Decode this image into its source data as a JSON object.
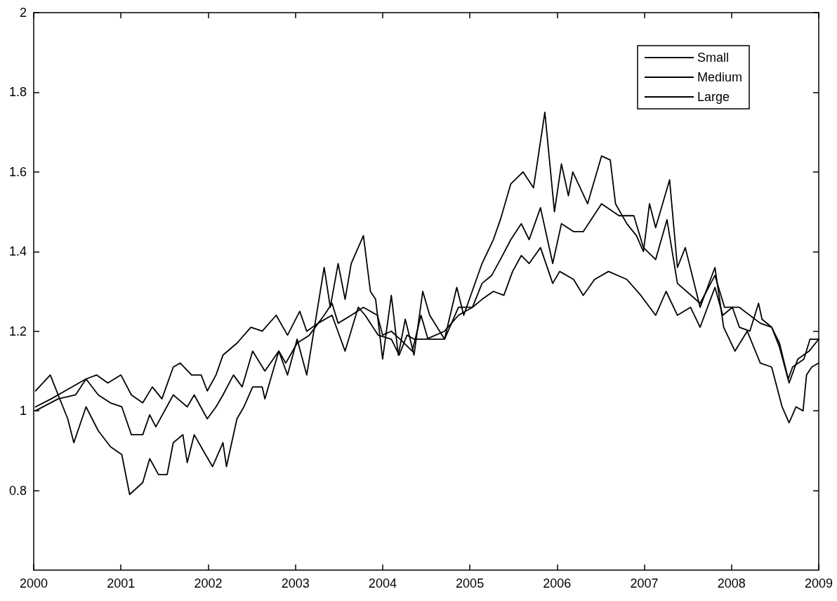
{
  "chart_data": {
    "type": "line",
    "xlim": [
      2000,
      2009
    ],
    "xticks": [
      2000,
      2001,
      2002,
      2003,
      2004,
      2005,
      2006,
      2007,
      2008,
      2009
    ],
    "ylim": [
      0.6,
      2
    ],
    "yticks": [
      0.8,
      1,
      1.2,
      1.4,
      1.6,
      1.8,
      2
    ],
    "grid": false,
    "legend": "top right",
    "line_style": "solid",
    "series": [
      {
        "name": "Small",
        "color": "#000000",
        "x": [
          2000.02,
          2000.19,
          2000.39,
          2000.46,
          2000.6,
          2000.74,
          2000.88,
          2001.01,
          2001.1,
          2001.25,
          2001.33,
          2001.43,
          2001.53,
          2001.6,
          2001.71,
          2001.76,
          2001.84,
          2001.97,
          2002.05,
          2002.17,
          2002.21,
          2002.33,
          2002.41,
          2002.51,
          2002.62,
          2002.65,
          2002.73,
          2002.81,
          2002.91,
          2003.02,
          2003.13,
          2003.33,
          2003.4,
          2003.49,
          2003.57,
          2003.64,
          2003.78,
          2003.86,
          2003.92,
          2004.0,
          2004.1,
          2004.18,
          2004.26,
          2004.36,
          2004.46,
          2004.54,
          2004.71,
          2004.85,
          2004.93,
          2005.14,
          2005.27,
          2005.35,
          2005.47,
          2005.61,
          2005.73,
          2005.86,
          2005.97,
          2006.05,
          2006.13,
          2006.18,
          2006.35,
          2006.51,
          2006.61,
          2006.67,
          2006.8,
          2006.91,
          2006.99,
          2007.06,
          2007.13,
          2007.29,
          2007.38,
          2007.47,
          2007.64,
          2007.81,
          2007.91,
          2008.04,
          2008.18,
          2008.33,
          2008.46,
          2008.58,
          2008.66,
          2008.74,
          2008.82,
          2008.86,
          2008.92,
          2009.0
        ],
        "values": [
          1.05,
          1.09,
          0.98,
          0.92,
          1.01,
          0.95,
          0.91,
          0.89,
          0.79,
          0.82,
          0.88,
          0.84,
          0.84,
          0.92,
          0.94,
          0.87,
          0.94,
          0.89,
          0.86,
          0.92,
          0.86,
          0.98,
          1.01,
          1.06,
          1.06,
          1.03,
          1.09,
          1.15,
          1.09,
          1.18,
          1.09,
          1.36,
          1.26,
          1.37,
          1.28,
          1.37,
          1.44,
          1.3,
          1.28,
          1.13,
          1.29,
          1.14,
          1.23,
          1.14,
          1.3,
          1.24,
          1.18,
          1.31,
          1.24,
          1.37,
          1.43,
          1.48,
          1.57,
          1.6,
          1.56,
          1.75,
          1.5,
          1.62,
          1.54,
          1.6,
          1.52,
          1.64,
          1.63,
          1.52,
          1.47,
          1.44,
          1.4,
          1.52,
          1.46,
          1.58,
          1.36,
          1.41,
          1.26,
          1.36,
          1.21,
          1.15,
          1.2,
          1.12,
          1.11,
          1.01,
          0.97,
          1.01,
          1.0,
          1.09,
          1.11,
          1.12
        ]
      },
      {
        "name": "Medium",
        "color": "#000000",
        "x": [
          2000.02,
          2000.28,
          2000.48,
          2000.6,
          2000.74,
          2000.88,
          2001.01,
          2001.12,
          2001.25,
          2001.33,
          2001.4,
          2001.6,
          2001.76,
          2001.84,
          2001.99,
          2002.09,
          2002.17,
          2002.29,
          2002.39,
          2002.51,
          2002.65,
          2002.81,
          2002.89,
          2003.02,
          2003.16,
          2003.33,
          2003.42,
          2003.49,
          2003.64,
          2003.78,
          2003.94,
          2004.0,
          2004.1,
          2004.2,
          2004.34,
          2004.44,
          2004.52,
          2004.71,
          2004.87,
          2005.03,
          2005.14,
          2005.25,
          2005.35,
          2005.47,
          2005.59,
          2005.68,
          2005.81,
          2005.95,
          2006.05,
          2006.19,
          2006.3,
          2006.51,
          2006.71,
          2006.88,
          2006.99,
          2007.13,
          2007.26,
          2007.38,
          2007.64,
          2007.81,
          2007.92,
          2008.09,
          2008.33,
          2008.46,
          2008.55,
          2008.66,
          2008.76,
          2008.89,
          2009.0
        ],
        "values": [
          1.0,
          1.03,
          1.04,
          1.08,
          1.04,
          1.02,
          1.01,
          0.94,
          0.94,
          0.99,
          0.96,
          1.04,
          1.01,
          1.04,
          0.98,
          1.01,
          1.04,
          1.09,
          1.06,
          1.15,
          1.1,
          1.15,
          1.12,
          1.17,
          1.19,
          1.24,
          1.27,
          1.22,
          1.24,
          1.26,
          1.24,
          1.19,
          1.2,
          1.18,
          1.15,
          1.24,
          1.18,
          1.18,
          1.26,
          1.26,
          1.32,
          1.34,
          1.38,
          1.43,
          1.47,
          1.43,
          1.51,
          1.37,
          1.47,
          1.45,
          1.45,
          1.52,
          1.49,
          1.49,
          1.41,
          1.38,
          1.48,
          1.32,
          1.27,
          1.34,
          1.26,
          1.26,
          1.22,
          1.21,
          1.16,
          1.07,
          1.13,
          1.15,
          1.18
        ]
      },
      {
        "name": "Large",
        "color": "#000000",
        "x": [
          2000.02,
          2000.2,
          2000.36,
          2000.6,
          2000.72,
          2000.85,
          2001.0,
          2001.12,
          2001.25,
          2001.36,
          2001.47,
          2001.6,
          2001.68,
          2001.81,
          2001.92,
          2001.99,
          2002.09,
          2002.17,
          2002.33,
          2002.49,
          2002.62,
          2002.78,
          2002.91,
          2003.05,
          2003.13,
          2003.26,
          2003.42,
          2003.57,
          2003.72,
          2003.8,
          2003.95,
          2004.1,
          2004.19,
          2004.28,
          2004.36,
          2004.5,
          2004.71,
          2004.87,
          2005.03,
          2005.14,
          2005.27,
          2005.39,
          2005.49,
          2005.59,
          2005.68,
          2005.81,
          2005.95,
          2006.03,
          2006.19,
          2006.3,
          2006.43,
          2006.59,
          2006.8,
          2006.96,
          2007.13,
          2007.25,
          2007.38,
          2007.53,
          2007.64,
          2007.81,
          2007.9,
          2008.01,
          2008.09,
          2008.21,
          2008.31,
          2008.35,
          2008.46,
          2008.55,
          2008.65,
          2008.7,
          2008.83,
          2008.9,
          2009.0
        ],
        "values": [
          1.01,
          1.03,
          1.05,
          1.08,
          1.09,
          1.07,
          1.09,
          1.04,
          1.02,
          1.06,
          1.03,
          1.11,
          1.12,
          1.09,
          1.09,
          1.05,
          1.09,
          1.14,
          1.17,
          1.21,
          1.2,
          1.24,
          1.19,
          1.25,
          1.2,
          1.22,
          1.24,
          1.15,
          1.26,
          1.24,
          1.19,
          1.18,
          1.14,
          1.19,
          1.18,
          1.18,
          1.2,
          1.24,
          1.26,
          1.28,
          1.3,
          1.29,
          1.35,
          1.39,
          1.37,
          1.41,
          1.32,
          1.35,
          1.33,
          1.29,
          1.33,
          1.35,
          1.33,
          1.29,
          1.24,
          1.3,
          1.24,
          1.26,
          1.21,
          1.31,
          1.24,
          1.26,
          1.21,
          1.2,
          1.27,
          1.23,
          1.21,
          1.17,
          1.08,
          1.11,
          1.13,
          1.18,
          1.18
        ]
      }
    ]
  }
}
